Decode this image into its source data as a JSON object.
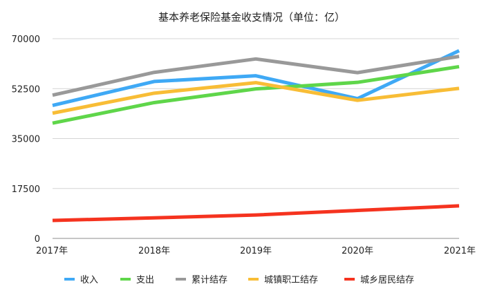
{
  "chart_data": {
    "type": "line",
    "title": "基本养老保险基金收支情况（单位：亿）",
    "xlabel": "",
    "ylabel": "",
    "categories": [
      "2017年",
      "2018年",
      "2019年",
      "2020年",
      "2021年"
    ],
    "yticks": [
      "0",
      "17500",
      "35000",
      "52500",
      "70000"
    ],
    "ylim": [
      0,
      70000
    ],
    "grid": true,
    "legend_position": "bottom",
    "series": [
      {
        "name": "收入",
        "color": "#3fa9f5",
        "values": [
          46600,
          55000,
          57000,
          49000,
          65800
        ]
      },
      {
        "name": "支出",
        "color": "#5fd64a",
        "values": [
          40400,
          47600,
          52400,
          54700,
          60200
        ]
      },
      {
        "name": "累计结存",
        "color": "#999999",
        "values": [
          50200,
          58200,
          62900,
          58100,
          63800
        ]
      },
      {
        "name": "城镇职工结存",
        "color": "#f8bd36",
        "values": [
          43900,
          50900,
          54600,
          48400,
          52600
        ]
      },
      {
        "name": "城乡居民结存",
        "color": "#f5331f",
        "values": [
          6300,
          7200,
          8200,
          9800,
          11400
        ]
      }
    ]
  }
}
